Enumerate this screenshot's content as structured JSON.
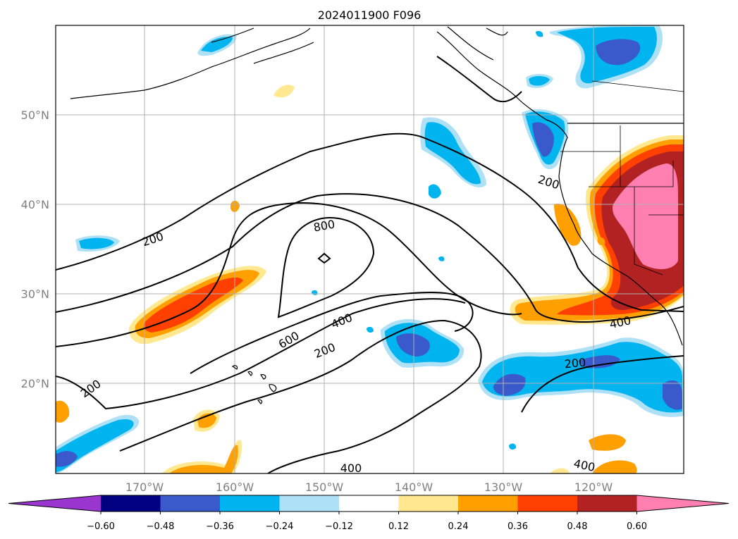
{
  "title": "2024011900 F096",
  "map": {
    "lat_labels": [
      "50°N",
      "40°N",
      "30°N",
      "20°N"
    ],
    "lon_labels": [
      "170°W",
      "160°W",
      "150°W",
      "140°W",
      "130°W",
      "120°W"
    ],
    "contour_labels": [
      "200",
      "200",
      "200",
      "200",
      "200",
      "400",
      "400",
      "400",
      "400",
      "600",
      "800"
    ]
  },
  "colorbar": {
    "ticks": [
      "−0.60",
      "−0.48",
      "−0.36",
      "−0.24",
      "−0.12",
      "0.12",
      "0.24",
      "0.36",
      "0.48",
      "0.60"
    ],
    "colors": [
      "#9a35d0",
      "#000080",
      "#3a5acb",
      "#00b4f0",
      "#aee0f6",
      "#ffffff",
      "#ffe890",
      "#ffa000",
      "#ff4000",
      "#b22222",
      "#ff80b0"
    ]
  }
}
